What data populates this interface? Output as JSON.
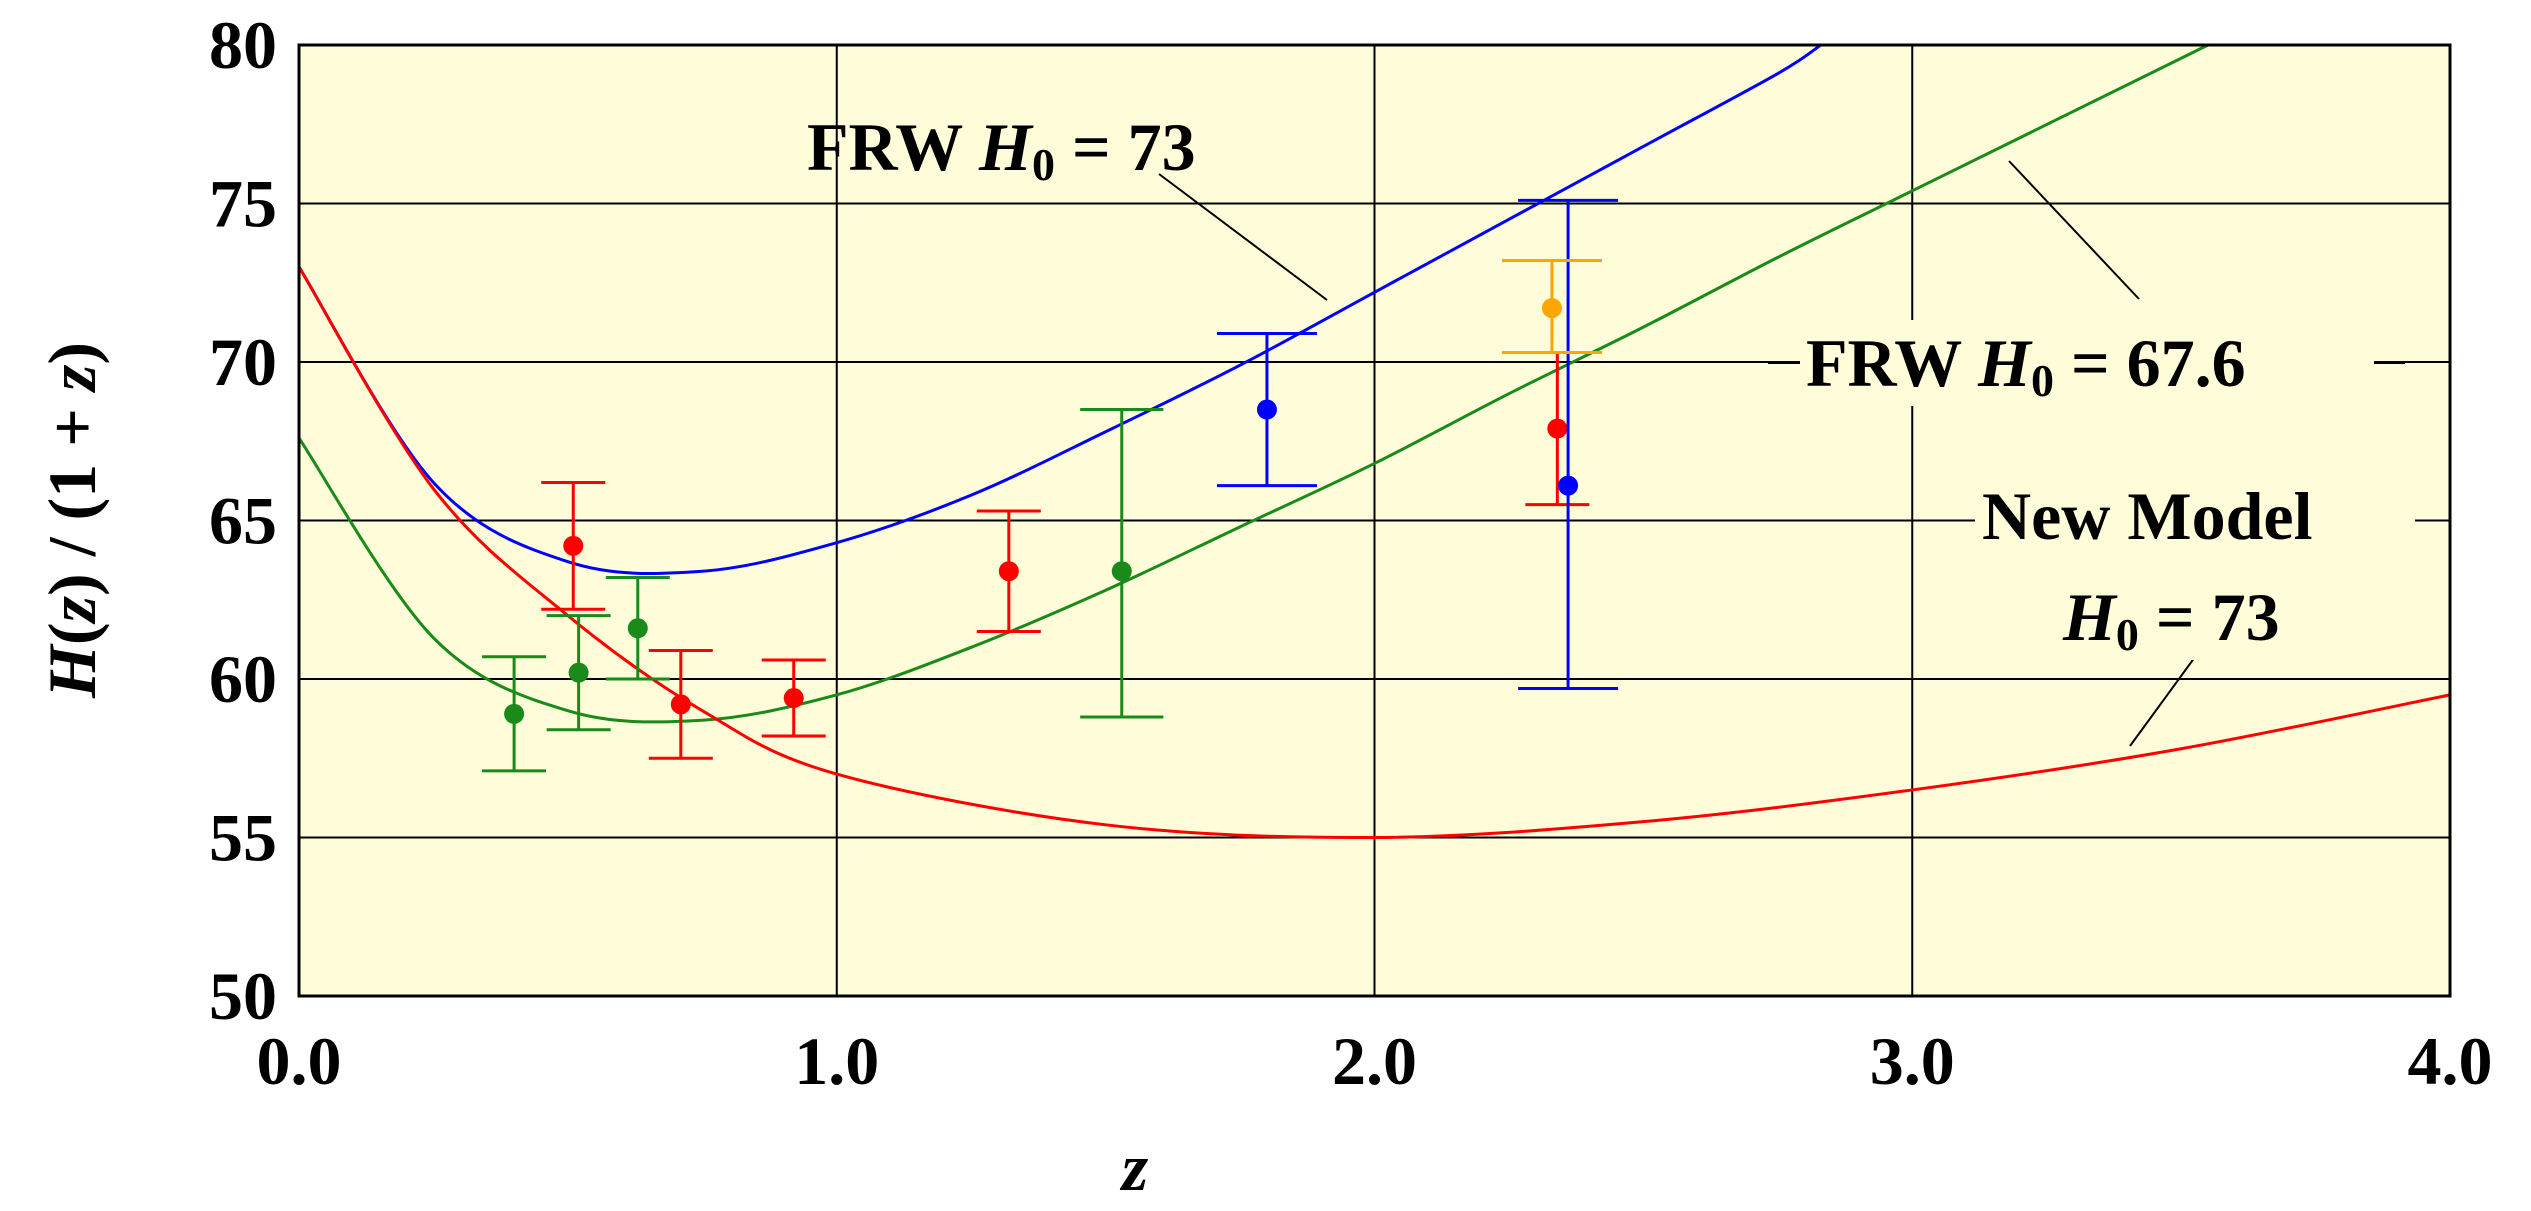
{
  "chart_data": {
    "type": "line",
    "ylabel_parts": [
      "H",
      "(",
      "z",
      ") / (1 + ",
      "z",
      ")"
    ],
    "xlabel": "z",
    "xlim": [
      0,
      4
    ],
    "xticks": [
      {
        "value": 0,
        "label": "0.0"
      },
      {
        "value": 1,
        "label": "1.0"
      },
      {
        "value": 2,
        "label": "2.0"
      },
      {
        "value": 3,
        "label": "3.0"
      },
      {
        "value": 4,
        "label": "4.0"
      }
    ],
    "ylim": [
      50,
      80
    ],
    "yticks": [
      50,
      55,
      60,
      65,
      70,
      75,
      80
    ],
    "grid": true,
    "series": [
      {
        "color": "#0000ff",
        "x": [
          0,
          0.25,
          0.5,
          0.75,
          1,
          1.25,
          1.5,
          1.75,
          2,
          2.25,
          2.5,
          2.75,
          2.83
        ],
        "values": [
          73,
          66.2,
          63.7,
          63.4,
          64.3,
          65.8,
          67.8,
          69.9,
          72.2,
          74.5,
          76.8,
          79.1,
          80
        ]
      },
      {
        "color": "#1a8a1a",
        "x": [
          0,
          0.25,
          0.5,
          0.75,
          1,
          1.25,
          1.5,
          1.75,
          2,
          2.25,
          2.5,
          2.75,
          3,
          3.55
        ],
        "values": [
          67.6,
          61.3,
          59.0,
          58.7,
          59.5,
          61.0,
          62.8,
          64.8,
          66.8,
          69.0,
          71.1,
          73.3,
          75.4,
          80
        ]
      },
      {
        "color": "#ff0000",
        "x": [
          0,
          0.25,
          0.5,
          0.75,
          1,
          1.5,
          2,
          2.5,
          3,
          3.5,
          4
        ],
        "values": [
          73,
          66.0,
          62,
          59,
          57,
          55.4,
          55,
          55.5,
          56.5,
          57.8,
          59.5
        ]
      }
    ],
    "points": [
      {
        "color": "#ff0000",
        "x": [
          0.51,
          0.71,
          0.92,
          1.32,
          2.34
        ],
        "values": [
          64.2,
          59.2,
          59.4,
          63.4,
          67.9
        ],
        "errors": [
          [
            2,
            2
          ],
          [
            1.7,
            1.7
          ],
          [
            1.2,
            1.2
          ],
          [
            1.9,
            1.9
          ],
          [
            2.4,
            2.4
          ]
        ]
      },
      {
        "color": "#1a8a1a",
        "x": [
          0.4,
          0.52,
          0.63,
          1.53
        ],
        "values": [
          58.9,
          60.2,
          61.6,
          63.4
        ],
        "errors": [
          [
            1.8,
            1.8
          ],
          [
            1.8,
            1.8
          ],
          [
            1.6,
            1.6
          ],
          [
            4.6,
            5.1
          ]
        ]
      },
      {
        "color": "#0000ff",
        "x": [
          1.8,
          2.36
        ],
        "values": [
          68.5,
          66.1
        ],
        "errors": [
          [
            2.4,
            2.4
          ],
          [
            6.4,
            9.0
          ]
        ]
      },
      {
        "color": "#ffa500",
        "x": [
          2.33
        ],
        "values": [
          71.7
        ],
        "errors": [
          [
            1.4,
            1.5
          ]
        ]
      }
    ],
    "annotations": [
      {
        "prefix": "FRW ",
        "symbol": "H",
        "subscript": "0",
        "suffix": " = 73"
      },
      {
        "prefix": "FRW ",
        "symbol": "H",
        "subscript": "0",
        "suffix": " = 67.6"
      },
      {
        "prefix": "New Model",
        "symbol": "H",
        "subscript": "0",
        "suffix": " = 73"
      }
    ]
  }
}
